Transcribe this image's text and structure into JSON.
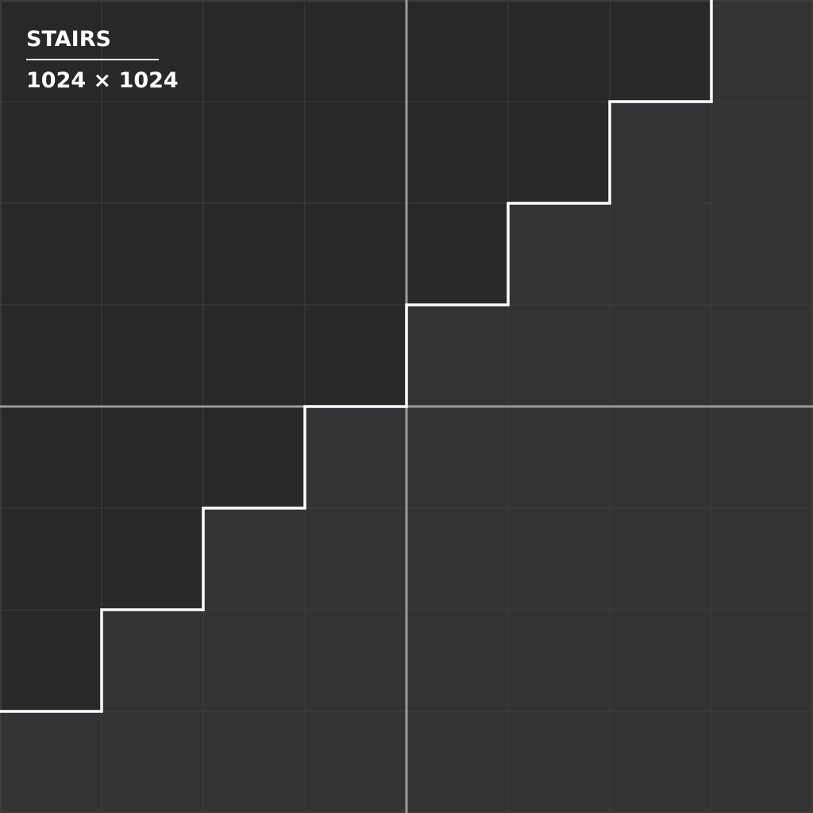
{
  "label": {
    "title": "STAIRS",
    "dimensions": "1024 × 1024"
  },
  "grid": {
    "columns": 8,
    "rows": 8
  },
  "colors": {
    "upper_region": "#282828",
    "lower_region": "#333335",
    "grid_line": "#3c3c3e",
    "center_axis": "#9a9a9a",
    "stair_line": "#ffffff",
    "text": "#ffffff"
  }
}
